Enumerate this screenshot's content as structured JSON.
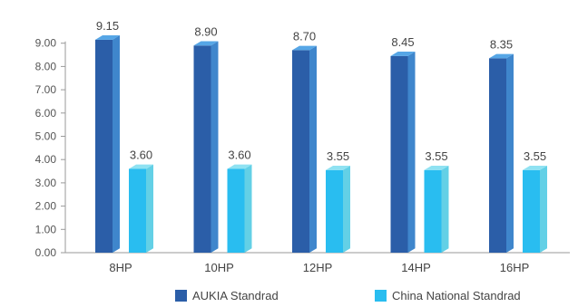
{
  "chart_data": {
    "type": "bar",
    "categories": [
      "8HP",
      "10HP",
      "12HP",
      "14HP",
      "16HP"
    ],
    "series": [
      {
        "name": "AUKIA Standrad",
        "values": [
          9.15,
          8.9,
          8.7,
          8.45,
          8.35
        ],
        "color": "#2b5ea8",
        "side_color": "#3f86cc",
        "top_color": "#56a6e6"
      },
      {
        "name": "China National Standrad",
        "values": [
          3.6,
          3.6,
          3.55,
          3.55,
          3.55
        ],
        "color": "#29bdf0",
        "side_color": "#63d0e6",
        "top_color": "#8fe2f2"
      }
    ],
    "y_ticks": [
      "0.00",
      "1.00",
      "2.00",
      "3.00",
      "4.00",
      "5.00",
      "6.00",
      "7.00",
      "8.00",
      "9.00"
    ],
    "ylim": [
      0,
      9
    ],
    "legend_position": "bottom",
    "grid": false,
    "title": "",
    "xlabel": "",
    "ylabel": ""
  }
}
